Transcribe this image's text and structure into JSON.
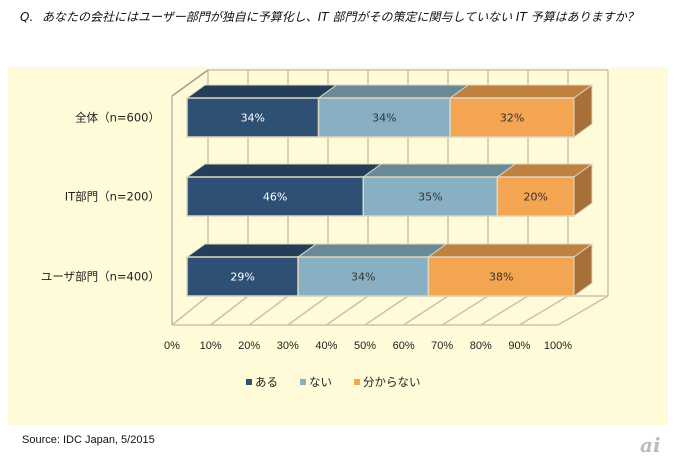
{
  "question": {
    "label": "Q.",
    "text": "あなたの会社にはユーザー部門が独自に予算化し、IT 部門がその策定に関与していない IT 予算はありますか？"
  },
  "chart_data": {
    "type": "bar",
    "orientation": "horizontal-stacked-100",
    "categories": [
      "全体（n=600）",
      "IT部門（n=200）",
      "ユーザ部門（n=400）"
    ],
    "series": [
      {
        "name": "ある",
        "values": [
          34,
          46,
          29
        ],
        "color": "#2e5074"
      },
      {
        "name": "ない",
        "values": [
          34,
          35,
          34
        ],
        "color": "#88b0c2"
      },
      {
        "name": "分からない",
        "values": [
          32,
          20,
          38
        ],
        "color": "#f4a552"
      }
    ],
    "xticks": [
      "0%",
      "10%",
      "20%",
      "30%",
      "40%",
      "50%",
      "60%",
      "70%",
      "80%",
      "90%",
      "100%"
    ],
    "xlim": [
      0,
      100
    ],
    "legend": "bottom",
    "grid": true
  },
  "source": "Source: IDC Japan, 5/2015",
  "logo": "ai"
}
